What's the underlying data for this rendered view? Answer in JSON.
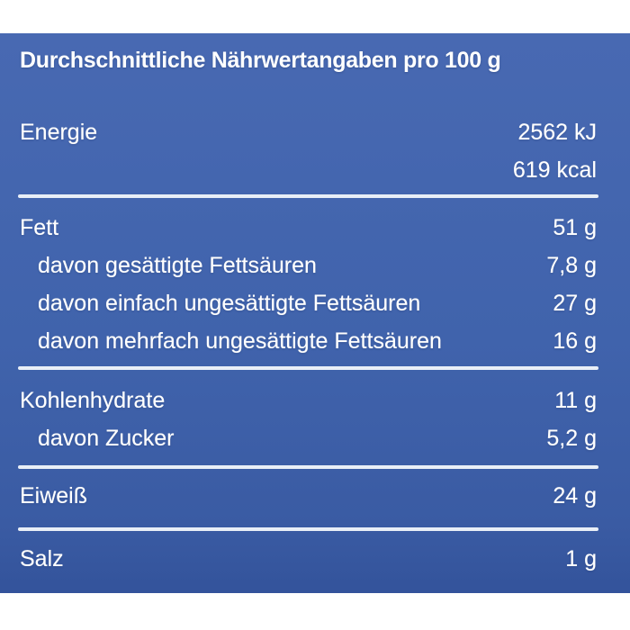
{
  "table": {
    "title": "Durchschnittliche Nährwertangaben pro 100 g",
    "colors": {
      "page_bg": "#ffffff",
      "panel_top": "#4869b2",
      "panel_mid": "#4063ac",
      "panel_bottom": "#3a5ba3",
      "panel_edge": "#33539b",
      "text": "#ffffff",
      "divider": "#e9eff7"
    },
    "sections": [
      {
        "name": "energie",
        "rows": [
          {
            "label": "Energie",
            "value": "2562 kJ"
          },
          {
            "label": "",
            "value": "619 kcal"
          }
        ]
      },
      {
        "name": "fett",
        "rows": [
          {
            "label": "Fett",
            "value": "51 g"
          },
          {
            "label": "davon gesättigte Fettsäuren",
            "value": "7,8 g"
          },
          {
            "label": "davon einfach ungesättigte Fettsäuren",
            "value": "27 g"
          },
          {
            "label": "davon mehrfach ungesättigte Fettsäuren",
            "value": "16 g"
          }
        ]
      },
      {
        "name": "kohlenhydrate",
        "rows": [
          {
            "label": "Kohlenhydrate",
            "value": "11 g"
          },
          {
            "label": "davon Zucker",
            "value": "5,2 g"
          }
        ]
      },
      {
        "name": "eiweiss",
        "rows": [
          {
            "label": "Eiweiß",
            "value": "24 g"
          }
        ]
      },
      {
        "name": "salz",
        "rows": [
          {
            "label": "Salz",
            "value": "1 g"
          }
        ]
      }
    ]
  }
}
